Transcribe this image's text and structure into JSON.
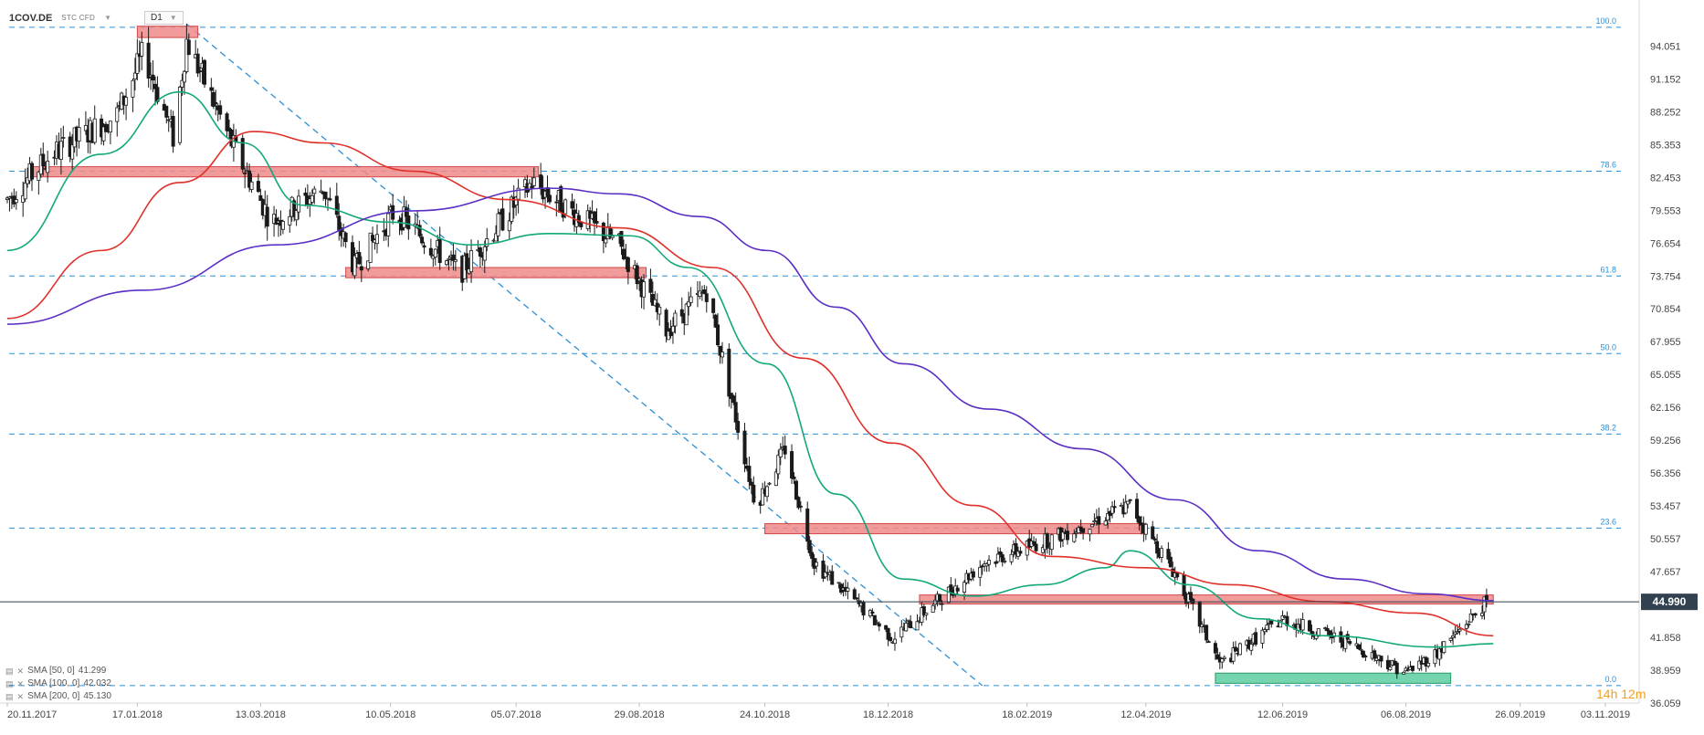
{
  "header": {
    "symbol": "1COV.DE",
    "instrument_type": "STC CFD",
    "timeframe": "D1"
  },
  "colors": {
    "candle": "#1a1a1a",
    "sma50": "#13a87a",
    "sma100": "#e0302a",
    "sma200": "#5b2fc4",
    "zone_red": "#f08a8a",
    "zone_green": "#5ccca0",
    "fib_line": "#2b8fd6",
    "last_price_bg": "#32414f"
  },
  "countdown": {
    "hours": "14h",
    "minutes": "12m"
  },
  "chart_data": {
    "type": "candlestick",
    "y_range": [
      36.059,
      96.5
    ],
    "y_ticks": [
      "94.051",
      "91.152",
      "88.252",
      "85.353",
      "82.453",
      "79.553",
      "76.654",
      "73.754",
      "70.854",
      "67.955",
      "65.055",
      "62.156",
      "59.256",
      "56.356",
      "53.457",
      "50.557",
      "47.657",
      "41.858",
      "38.959",
      "36.059"
    ],
    "last_price": "44.990",
    "x_ticks": [
      "20.11.2017",
      "17.01.2018",
      "13.03.2018",
      "10.05.2018",
      "05.07.2018",
      "29.08.2018",
      "24.10.2018",
      "18.12.2018",
      "18.02.2019",
      "12.04.2019",
      "12.06.2019",
      "06.08.2019",
      "26.09.2019",
      "03.11.2019"
    ],
    "fibonacci": [
      {
        "label": "100.0",
        "value": 95.7
      },
      {
        "label": "78.6",
        "value": 83.0
      },
      {
        "label": "61.8",
        "value": 73.75
      },
      {
        "label": "50.0",
        "value": 66.9
      },
      {
        "label": "38.2",
        "value": 59.8
      },
      {
        "label": "23.6",
        "value": 51.5
      },
      {
        "label": "0.0",
        "value": 37.6
      }
    ],
    "zones": [
      {
        "color": "red",
        "x0": "2018-01-17",
        "x1": "2018-02-13",
        "low": 94.8,
        "high": 95.8
      },
      {
        "color": "red",
        "x0": "2017-11-30",
        "x1": "2018-07-15",
        "low": 82.5,
        "high": 83.4
      },
      {
        "color": "red",
        "x0": "2018-04-20",
        "x1": "2018-09-01",
        "low": 73.6,
        "high": 74.5
      },
      {
        "color": "red",
        "x0": "2018-10-24",
        "x1": "2019-04-12",
        "low": 51.0,
        "high": 51.9
      },
      {
        "color": "red",
        "x0": "2019-01-01",
        "x1": "2019-09-14",
        "low": 44.8,
        "high": 45.6
      },
      {
        "color": "green",
        "x0": "2019-05-13",
        "x1": "2019-08-26",
        "low": 37.8,
        "high": 38.7
      }
    ],
    "trendline": {
      "from": {
        "date": "2018-02-08",
        "value": 96.0
      },
      "to": {
        "date": "2019-01-29",
        "value": 37.6
      }
    },
    "key_prices": [
      {
        "date": "2017-11-20",
        "value": 80.5
      },
      {
        "date": "2017-12-10",
        "value": 84.5
      },
      {
        "date": "2018-01-08",
        "value": 88.0
      },
      {
        "date": "2018-01-20",
        "value": 93.5
      },
      {
        "date": "2018-02-02",
        "value": 86.0
      },
      {
        "date": "2018-02-08",
        "value": 94.5
      },
      {
        "date": "2018-02-28",
        "value": 85.5
      },
      {
        "date": "2018-03-18",
        "value": 78.5
      },
      {
        "date": "2018-04-10",
        "value": 81.5
      },
      {
        "date": "2018-04-24",
        "value": 74.5
      },
      {
        "date": "2018-05-12",
        "value": 79.5
      },
      {
        "date": "2018-06-10",
        "value": 74.0
      },
      {
        "date": "2018-07-12",
        "value": 82.0
      },
      {
        "date": "2018-08-20",
        "value": 76.5
      },
      {
        "date": "2018-09-10",
        "value": 69.0
      },
      {
        "date": "2018-09-28",
        "value": 72.5
      },
      {
        "date": "2018-10-20",
        "value": 53.5
      },
      {
        "date": "2018-11-02",
        "value": 58.5
      },
      {
        "date": "2018-11-15",
        "value": 48.5
      },
      {
        "date": "2018-12-20",
        "value": 41.8
      },
      {
        "date": "2019-01-30",
        "value": 48.5
      },
      {
        "date": "2019-02-28",
        "value": 50.5
      },
      {
        "date": "2019-04-05",
        "value": 53.5
      },
      {
        "date": "2019-04-25",
        "value": 47.5
      },
      {
        "date": "2019-05-15",
        "value": 39.5
      },
      {
        "date": "2019-06-12",
        "value": 43.5
      },
      {
        "date": "2019-07-10",
        "value": 41.5
      },
      {
        "date": "2019-08-06",
        "value": 38.8
      },
      {
        "date": "2019-08-20",
        "value": 40.5
      },
      {
        "date": "2019-09-11",
        "value": 45.0
      }
    ],
    "sma": [
      {
        "name": "SMA [50, 0]",
        "last": "41.299",
        "color": "sma50",
        "points": [
          [
            "2017-11-20",
            76.0
          ],
          [
            "2018-01-01",
            84.5
          ],
          [
            "2018-02-05",
            90.0
          ],
          [
            "2018-03-05",
            85.5
          ],
          [
            "2018-04-01",
            80.0
          ],
          [
            "2018-05-10",
            78.5
          ],
          [
            "2018-06-15",
            76.5
          ],
          [
            "2018-07-20",
            77.5
          ],
          [
            "2018-08-25",
            77.3
          ],
          [
            "2018-09-20",
            74.5
          ],
          [
            "2018-10-25",
            66.0
          ],
          [
            "2018-11-25",
            54.5
          ],
          [
            "2018-12-25",
            47.0
          ],
          [
            "2019-01-25",
            45.5
          ],
          [
            "2019-02-25",
            46.5
          ],
          [
            "2019-03-25",
            48.0
          ],
          [
            "2019-04-05",
            49.5
          ],
          [
            "2019-05-01",
            46.5
          ],
          [
            "2019-06-01",
            43.5
          ],
          [
            "2019-07-01",
            42.0
          ],
          [
            "2019-08-20",
            41.0
          ],
          [
            "2019-09-14",
            41.3
          ]
        ]
      },
      {
        "name": "SMA [100, 0]",
        "last": "42.032",
        "color": "sma100",
        "points": [
          [
            "2017-11-20",
            70.0
          ],
          [
            "2018-01-01",
            76.0
          ],
          [
            "2018-02-05",
            82.0
          ],
          [
            "2018-03-10",
            86.5
          ],
          [
            "2018-04-10",
            85.5
          ],
          [
            "2018-05-20",
            83.0
          ],
          [
            "2018-07-01",
            80.5
          ],
          [
            "2018-08-20",
            78.0
          ],
          [
            "2018-10-01",
            74.5
          ],
          [
            "2018-11-10",
            66.5
          ],
          [
            "2018-12-20",
            59.0
          ],
          [
            "2019-01-25",
            53.5
          ],
          [
            "2019-03-01",
            49.0
          ],
          [
            "2019-04-12",
            48.0
          ],
          [
            "2019-05-20",
            46.5
          ],
          [
            "2019-07-01",
            45.0
          ],
          [
            "2019-08-10",
            44.0
          ],
          [
            "2019-09-14",
            42.0
          ]
        ]
      },
      {
        "name": "SMA [200, 0]",
        "last": "45.130",
        "color": "sma200",
        "points": [
          [
            "2017-11-20",
            69.5
          ],
          [
            "2018-01-20",
            72.5
          ],
          [
            "2018-03-20",
            76.5
          ],
          [
            "2018-05-20",
            79.5
          ],
          [
            "2018-07-20",
            81.5
          ],
          [
            "2018-08-20",
            81.0
          ],
          [
            "2018-09-25",
            79.0
          ],
          [
            "2018-10-25",
            76.0
          ],
          [
            "2018-11-25",
            71.0
          ],
          [
            "2018-12-25",
            66.0
          ],
          [
            "2019-02-01",
            62.0
          ],
          [
            "2019-03-15",
            58.5
          ],
          [
            "2019-04-25",
            54.0
          ],
          [
            "2019-06-01",
            49.5
          ],
          [
            "2019-07-10",
            47.0
          ],
          [
            "2019-08-15",
            45.7
          ],
          [
            "2019-09-14",
            45.1
          ]
        ]
      }
    ]
  }
}
